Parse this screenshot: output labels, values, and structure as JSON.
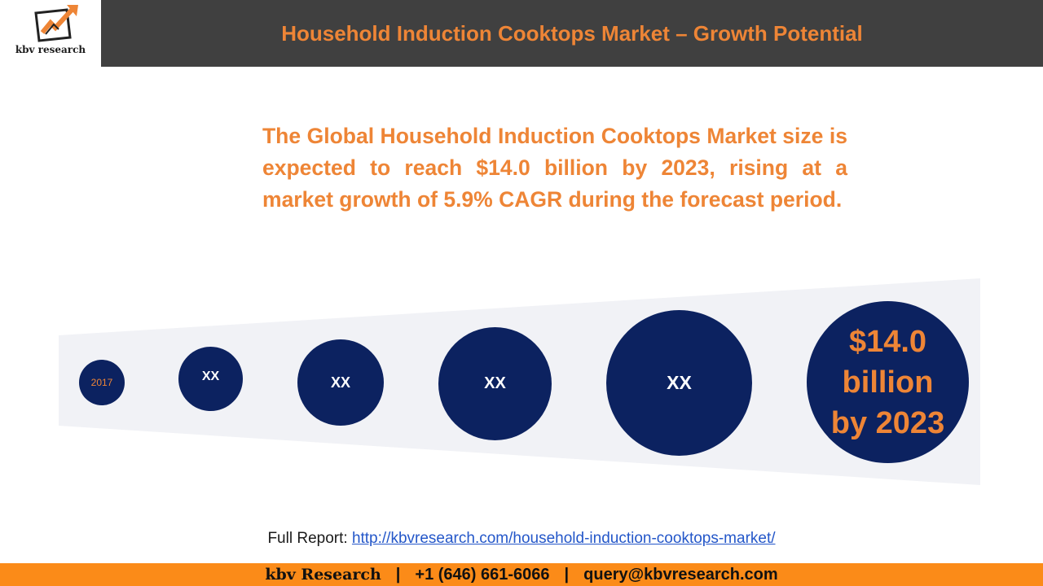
{
  "logo": {
    "text": "kbv research"
  },
  "header": {
    "title": "Household Induction Cooktops Market – Growth Potential"
  },
  "headline": "The Global Household Induction Cooktops Market size is expected to reach $14.0 billion by 2023, rising at a market growth of 5.9% CAGR during the forecast period.",
  "growth": {
    "start_label": "2017",
    "steps": [
      "XX",
      "XX",
      "XX",
      "XX"
    ],
    "final": {
      "line1": "$14.0",
      "line2": "billion",
      "line3": "by 2023"
    }
  },
  "full_report": {
    "label": "Full Report:",
    "link": "http://kbvresearch.com/household-induction-cooktops-market/"
  },
  "footer": {
    "brand": "kbv Research",
    "phone": "+1 (646) 661-6066",
    "email": "query@kbvresearch.com",
    "separator": "|"
  },
  "colors": {
    "accent": "#ee8536",
    "navy": "#0c2260",
    "header_bg": "#404040",
    "footer_bg": "#fb8b18"
  }
}
